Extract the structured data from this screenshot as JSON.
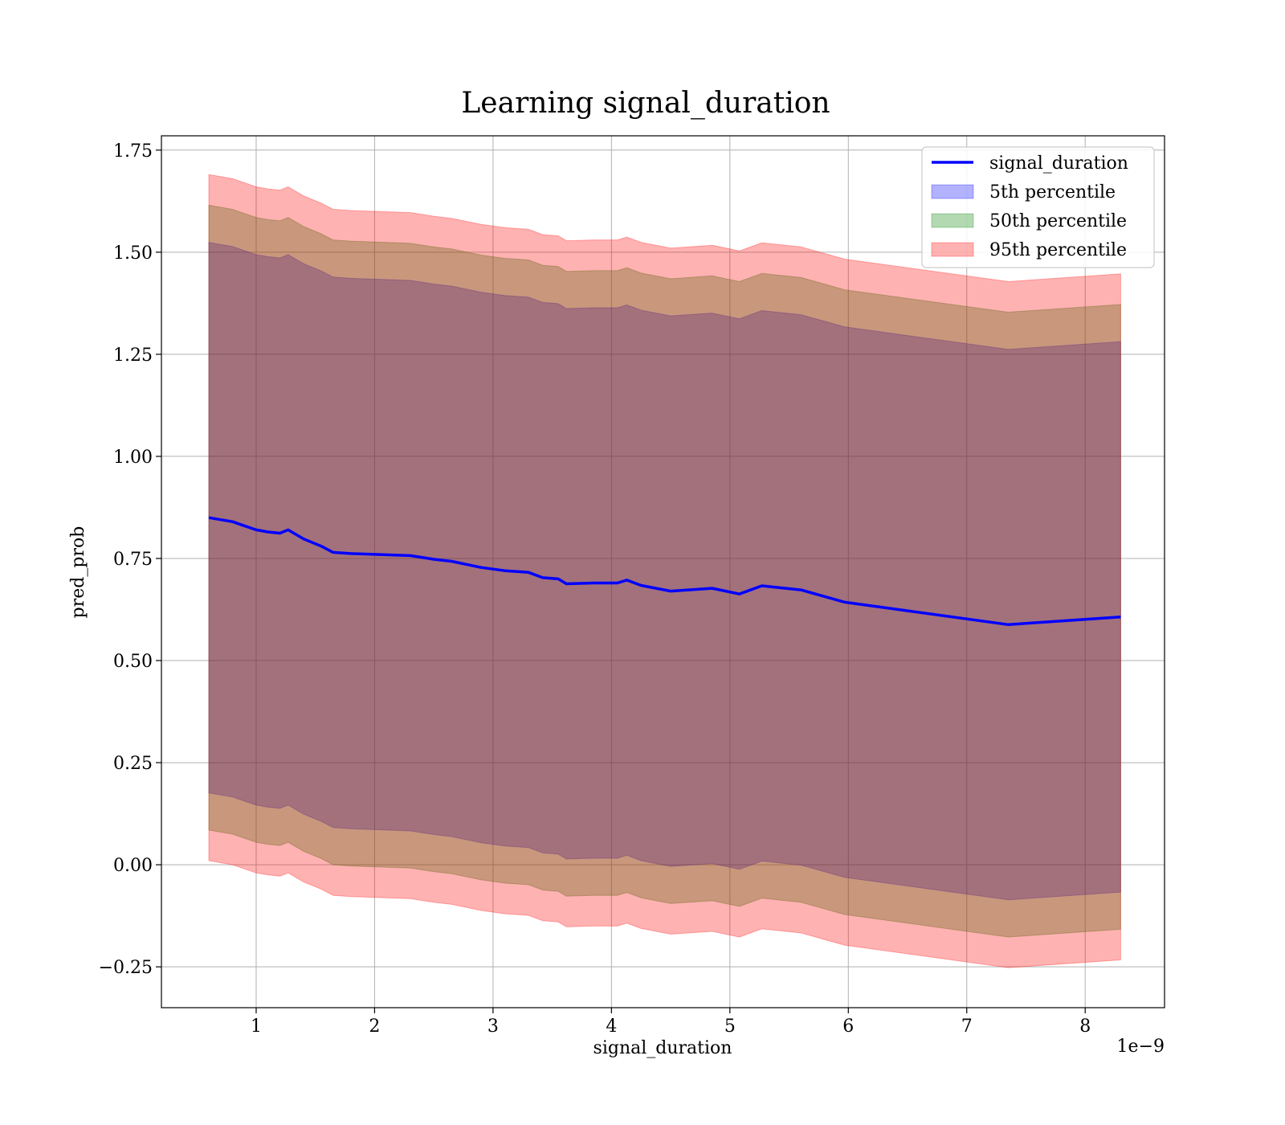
{
  "chart_data": {
    "type": "area",
    "title": "Learning signal_duration",
    "xlabel": "signal_duration",
    "ylabel": "pred_prob",
    "x_offset_label": "1e−9",
    "xlim": [
      0.2,
      8.67
    ],
    "ylim": [
      -0.35,
      1.785
    ],
    "x_ticks": [
      1,
      2,
      3,
      4,
      5,
      6,
      7,
      8
    ],
    "x_tick_labels": [
      "1",
      "2",
      "3",
      "4",
      "5",
      "6",
      "7",
      "8"
    ],
    "y_ticks": [
      -0.25,
      0,
      0.25,
      0.5,
      0.75,
      1.0,
      1.25,
      1.5,
      1.75
    ],
    "y_tick_labels": [
      "−0.25",
      "0.00",
      "0.25",
      "0.50",
      "0.75",
      "1.00",
      "1.25",
      "1.50",
      "1.75"
    ],
    "grid": true,
    "legend_position": "top-right",
    "x": [
      0.6,
      0.7,
      0.8,
      0.9,
      1.0,
      1.1,
      1.2,
      1.27,
      1.4,
      1.55,
      1.65,
      1.8,
      2.0,
      2.3,
      2.5,
      2.65,
      2.9,
      3.1,
      3.3,
      3.42,
      3.55,
      3.62,
      3.85,
      4.05,
      4.13,
      4.25,
      4.5,
      4.85,
      5.08,
      5.27,
      5.6,
      5.97,
      7.35,
      8.3
    ],
    "series": [
      {
        "name": "signal_duration",
        "kind": "line",
        "color": "#0000ff",
        "values": [
          0.85,
          0.845,
          0.84,
          0.83,
          0.82,
          0.815,
          0.812,
          0.82,
          0.798,
          0.78,
          0.765,
          0.762,
          0.76,
          0.757,
          0.748,
          0.743,
          0.728,
          0.72,
          0.716,
          0.703,
          0.7,
          0.688,
          0.69,
          0.69,
          0.697,
          0.684,
          0.67,
          0.677,
          0.663,
          0.683,
          0.673,
          0.643,
          0.588,
          0.607
        ]
      },
      {
        "name": "5th percentile",
        "kind": "band",
        "color": "#0000ff",
        "opacity": 0.3,
        "lower": [
          0.176,
          0.171,
          0.166,
          0.156,
          0.146,
          0.141,
          0.138,
          0.146,
          0.124,
          0.106,
          0.091,
          0.088,
          0.086,
          0.083,
          0.074,
          0.069,
          0.054,
          0.046,
          0.042,
          0.029,
          0.026,
          0.014,
          0.016,
          0.016,
          0.023,
          0.01,
          -0.004,
          0.003,
          -0.011,
          0.009,
          -0.001,
          -0.031,
          -0.086,
          -0.067
        ],
        "upper": [
          1.524,
          1.519,
          1.514,
          1.504,
          1.494,
          1.489,
          1.486,
          1.494,
          1.472,
          1.454,
          1.439,
          1.436,
          1.434,
          1.431,
          1.422,
          1.417,
          1.402,
          1.394,
          1.39,
          1.377,
          1.374,
          1.362,
          1.364,
          1.364,
          1.371,
          1.358,
          1.344,
          1.351,
          1.337,
          1.357,
          1.347,
          1.317,
          1.262,
          1.281
        ]
      },
      {
        "name": "50th percentile",
        "kind": "band",
        "color": "#008000",
        "opacity": 0.3,
        "lower": [
          0.085,
          0.08,
          0.075,
          0.065,
          0.055,
          0.05,
          0.047,
          0.055,
          0.033,
          0.015,
          0.0,
          -0.003,
          -0.005,
          -0.008,
          -0.017,
          -0.022,
          -0.037,
          -0.045,
          -0.049,
          -0.062,
          -0.065,
          -0.077,
          -0.075,
          -0.075,
          -0.068,
          -0.081,
          -0.095,
          -0.088,
          -0.102,
          -0.082,
          -0.092,
          -0.122,
          -0.177,
          -0.158
        ],
        "upper": [
          1.615,
          1.61,
          1.605,
          1.595,
          1.585,
          1.58,
          1.577,
          1.585,
          1.563,
          1.545,
          1.53,
          1.527,
          1.525,
          1.522,
          1.513,
          1.508,
          1.493,
          1.485,
          1.481,
          1.468,
          1.465,
          1.453,
          1.455,
          1.455,
          1.462,
          1.449,
          1.435,
          1.442,
          1.428,
          1.448,
          1.438,
          1.408,
          1.353,
          1.372
        ]
      },
      {
        "name": "95th percentile",
        "kind": "band",
        "color": "#ff0000",
        "opacity": 0.3,
        "lower": [
          0.01,
          0.005,
          0.0,
          -0.01,
          -0.02,
          -0.025,
          -0.028,
          -0.02,
          -0.042,
          -0.06,
          -0.075,
          -0.078,
          -0.08,
          -0.083,
          -0.092,
          -0.097,
          -0.112,
          -0.12,
          -0.124,
          -0.137,
          -0.14,
          -0.152,
          -0.15,
          -0.15,
          -0.143,
          -0.156,
          -0.17,
          -0.163,
          -0.177,
          -0.157,
          -0.167,
          -0.197,
          -0.252,
          -0.233
        ],
        "upper": [
          1.69,
          1.685,
          1.68,
          1.67,
          1.66,
          1.655,
          1.652,
          1.66,
          1.638,
          1.62,
          1.605,
          1.602,
          1.6,
          1.597,
          1.588,
          1.583,
          1.568,
          1.56,
          1.556,
          1.543,
          1.54,
          1.528,
          1.53,
          1.53,
          1.537,
          1.524,
          1.51,
          1.517,
          1.503,
          1.523,
          1.513,
          1.483,
          1.428,
          1.447
        ]
      }
    ]
  }
}
